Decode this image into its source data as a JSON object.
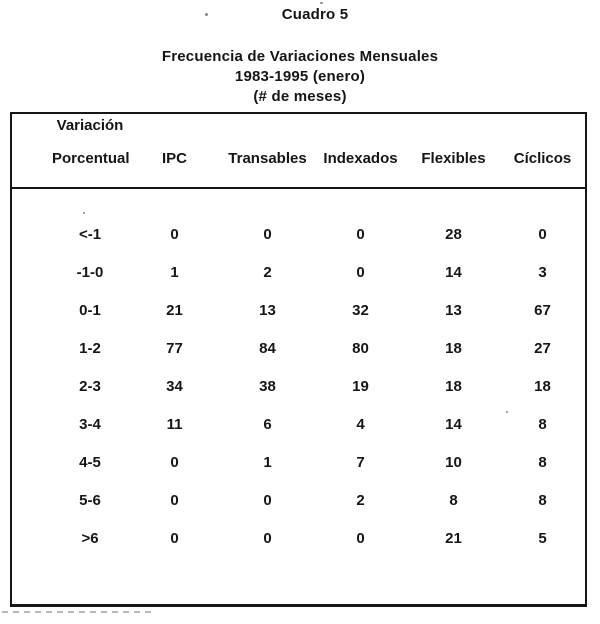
{
  "page": {
    "caption": "Cuadro 5",
    "subtitle_lines": [
      "Frecuencia de Variaciones Mensuales",
      "1983-1995 (enero)",
      "(# de meses)"
    ]
  },
  "table": {
    "header": {
      "col1_line1": "Variación",
      "col1_line2": "Porcentual",
      "columns": [
        "IPC",
        "Transables",
        "Indexados",
        "Flexibles",
        "Cíclicos"
      ]
    },
    "rows": [
      {
        "label": "<-1",
        "values": [
          "0",
          "0",
          "0",
          "28",
          "0"
        ]
      },
      {
        "label": "-1-0",
        "values": [
          "1",
          "2",
          "0",
          "14",
          "3"
        ]
      },
      {
        "label": "0-1",
        "values": [
          "21",
          "13",
          "32",
          "13",
          "67"
        ]
      },
      {
        "label": "1-2",
        "values": [
          "77",
          "84",
          "80",
          "18",
          "27"
        ]
      },
      {
        "label": "2-3",
        "values": [
          "34",
          "38",
          "19",
          "18",
          "18"
        ]
      },
      {
        "label": "3-4",
        "values": [
          "11",
          "6",
          "4",
          "14",
          "8"
        ]
      },
      {
        "label": "4-5",
        "values": [
          "0",
          "1",
          "7",
          "10",
          "8"
        ]
      },
      {
        "label": "5-6",
        "values": [
          "0",
          "0",
          "2",
          "8",
          "8"
        ]
      },
      {
        "label": ">6",
        "values": [
          "0",
          "0",
          "0",
          "21",
          "5"
        ]
      }
    ]
  }
}
